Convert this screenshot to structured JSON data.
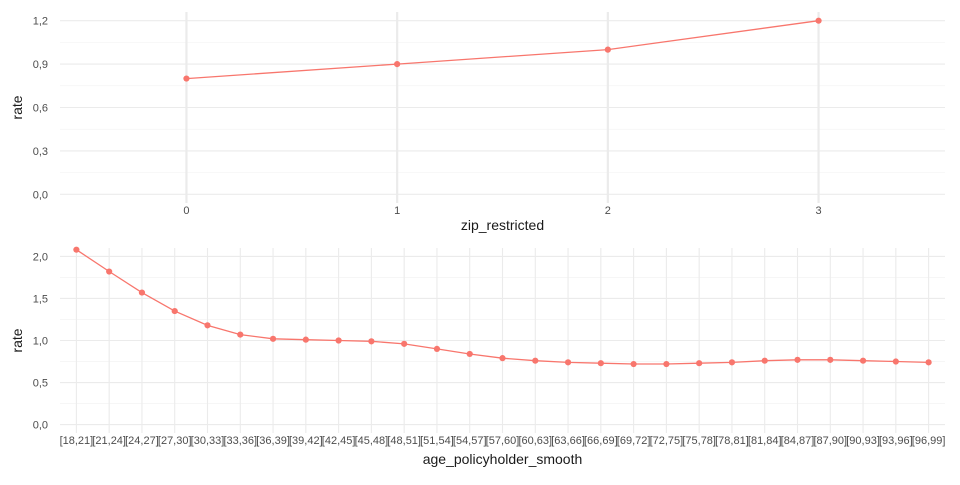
{
  "chart_data": [
    {
      "type": "line",
      "xlabel": "zip_restricted",
      "ylabel": "rate",
      "categories": [
        "0",
        "1",
        "2",
        "3"
      ],
      "series": [
        {
          "values": [
            0.8,
            0.9,
            1.0,
            1.2
          ]
        }
      ],
      "ylim": [
        0,
        1.2
      ],
      "yticks": [
        "0,0",
        "0,3",
        "0,6",
        "0,9",
        "1,2"
      ],
      "grid": true,
      "color": "#F8766D"
    },
    {
      "type": "line",
      "xlabel": "age_policyholder_smooth",
      "ylabel": "rate",
      "categories": [
        "[18,21]",
        "[21,24]",
        "[24,27]",
        "[27,30]",
        "[30,33]",
        "[33,36]",
        "[36,39]",
        "[39,42]",
        "[42,45]",
        "[45,48]",
        "[48,51]",
        "[51,54]",
        "[54,57]",
        "[57,60]",
        "[60,63]",
        "[63,66]",
        "[66,69]",
        "[69,72]",
        "[72,75]",
        "[75,78]",
        "[78,81]",
        "[81,84]",
        "[84,87]",
        "[87,90]",
        "[90,93]",
        "[93,96]",
        "[96,99]"
      ],
      "series": [
        {
          "values": [
            2.08,
            1.82,
            1.57,
            1.35,
            1.18,
            1.07,
            1.02,
            1.01,
            1.0,
            0.99,
            0.96,
            0.9,
            0.84,
            0.79,
            0.76,
            0.74,
            0.73,
            0.72,
            0.72,
            0.73,
            0.74,
            0.76,
            0.77,
            0.77,
            0.76,
            0.75,
            0.74
          ]
        }
      ],
      "ylim": [
        0,
        2.0
      ],
      "yticks": [
        "0,0",
        "0,5",
        "1,0",
        "1,5",
        "2,0"
      ],
      "grid": true,
      "color": "#F8766D"
    }
  ]
}
